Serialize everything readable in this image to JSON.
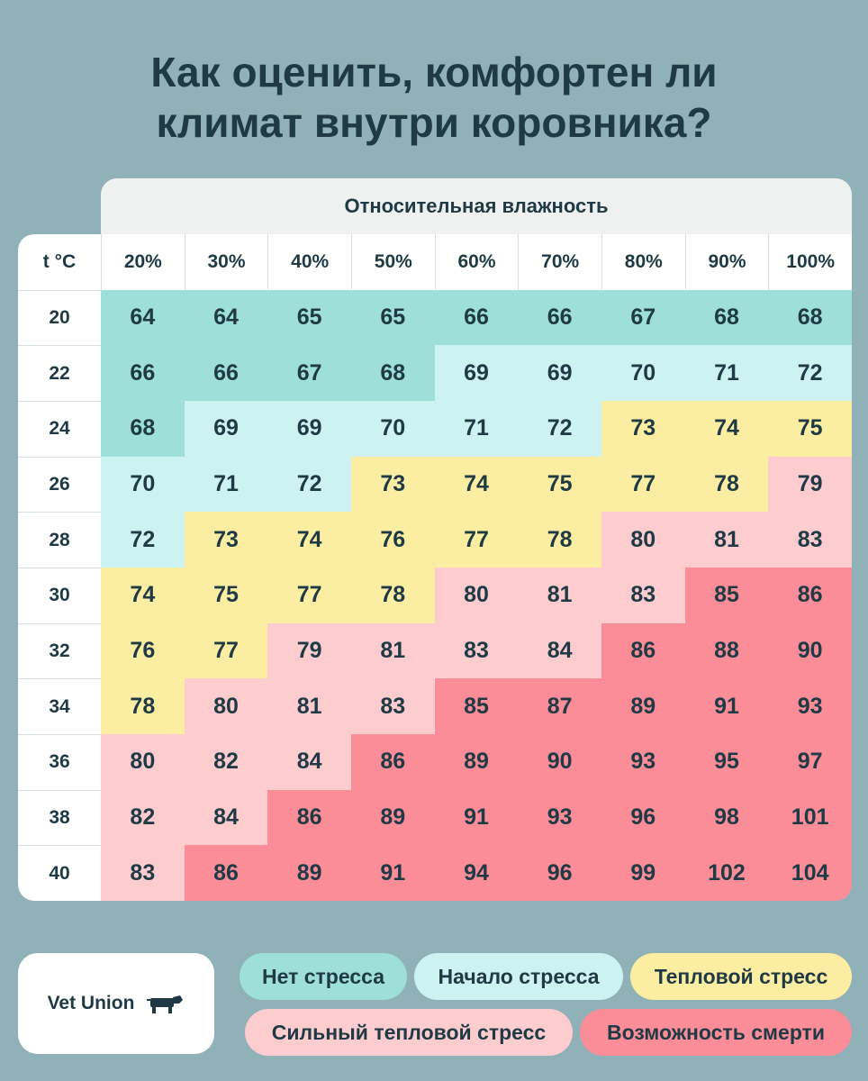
{
  "title": {
    "line1": "Как оценить, комфортен ли",
    "line2": "климат внутри коровника?"
  },
  "chart_data": {
    "type": "table",
    "column_group_label": "Относительная влажность",
    "row_header_label": "t °C",
    "columns": [
      "20%",
      "30%",
      "40%",
      "50%",
      "60%",
      "70%",
      "80%",
      "90%",
      "100%"
    ],
    "rows": [
      "20",
      "22",
      "24",
      "26",
      "28",
      "30",
      "32",
      "34",
      "36",
      "38",
      "40"
    ],
    "values": [
      [
        64,
        64,
        65,
        65,
        66,
        66,
        67,
        68,
        68
      ],
      [
        66,
        66,
        67,
        68,
        69,
        69,
        70,
        71,
        72
      ],
      [
        68,
        69,
        69,
        70,
        71,
        72,
        73,
        74,
        75
      ],
      [
        70,
        71,
        72,
        73,
        74,
        75,
        77,
        78,
        79
      ],
      [
        72,
        73,
        74,
        76,
        77,
        78,
        80,
        81,
        83
      ],
      [
        74,
        75,
        77,
        78,
        80,
        81,
        83,
        85,
        86
      ],
      [
        76,
        77,
        79,
        81,
        83,
        84,
        86,
        88,
        90
      ],
      [
        78,
        80,
        81,
        83,
        85,
        87,
        89,
        91,
        93
      ],
      [
        80,
        82,
        84,
        86,
        89,
        90,
        93,
        95,
        97
      ],
      [
        82,
        84,
        86,
        89,
        91,
        93,
        96,
        98,
        101
      ],
      [
        83,
        86,
        89,
        91,
        94,
        96,
        99,
        102,
        104
      ]
    ],
    "zones": [
      [
        0,
        0,
        0,
        0,
        0,
        0,
        0,
        0,
        0
      ],
      [
        0,
        0,
        0,
        0,
        1,
        1,
        1,
        1,
        1
      ],
      [
        0,
        1,
        1,
        1,
        1,
        1,
        2,
        2,
        2
      ],
      [
        1,
        1,
        1,
        2,
        2,
        2,
        2,
        2,
        3
      ],
      [
        1,
        2,
        2,
        2,
        2,
        2,
        3,
        3,
        3
      ],
      [
        2,
        2,
        2,
        2,
        3,
        3,
        3,
        4,
        4
      ],
      [
        2,
        2,
        3,
        3,
        3,
        3,
        4,
        4,
        4
      ],
      [
        2,
        3,
        3,
        3,
        4,
        4,
        4,
        4,
        4
      ],
      [
        3,
        3,
        3,
        4,
        4,
        4,
        4,
        4,
        4
      ],
      [
        3,
        3,
        4,
        4,
        4,
        4,
        4,
        4,
        4
      ],
      [
        3,
        4,
        4,
        4,
        4,
        4,
        4,
        4,
        4
      ]
    ],
    "legend": [
      {
        "label": "Нет стресса",
        "color": "#9edfd9"
      },
      {
        "label": "Начало стресса",
        "color": "#ccf2f1"
      },
      {
        "label": "Тепловой стресс",
        "color": "#fbeea3"
      },
      {
        "label": "Сильный тепловой стресс",
        "color": "#fccccf"
      },
      {
        "label": "Возможность смерти",
        "color": "#fa8d98"
      }
    ]
  },
  "logo": {
    "text": "Vet Union",
    "icon": "cow-icon"
  }
}
